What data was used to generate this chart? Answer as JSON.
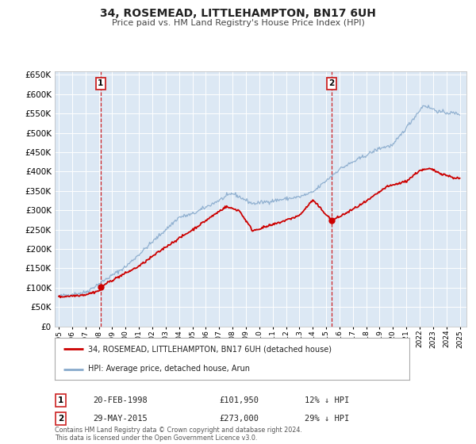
{
  "title": "34, ROSEMEAD, LITTLEHAMPTON, BN17 6UH",
  "subtitle": "Price paid vs. HM Land Registry's House Price Index (HPI)",
  "legend_line1": "34, ROSEMEAD, LITTLEHAMPTON, BN17 6UH (detached house)",
  "legend_line2": "HPI: Average price, detached house, Arun",
  "annotation1_label": "1",
  "annotation1_date": "20-FEB-1998",
  "annotation1_price": "£101,950",
  "annotation1_hpi": "12% ↓ HPI",
  "annotation2_label": "2",
  "annotation2_date": "29-MAY-2015",
  "annotation2_price": "£273,000",
  "annotation2_hpi": "29% ↓ HPI",
  "footer": "Contains HM Land Registry data © Crown copyright and database right 2024.\nThis data is licensed under the Open Government Licence v3.0.",
  "property_color": "#cc0000",
  "hpi_color": "#88aacc",
  "figure_bg": "#ffffff",
  "plot_bg_color": "#dce8f4",
  "grid_color": "#ffffff",
  "ylim": [
    0,
    660000
  ],
  "xlim_start": 1994.7,
  "xlim_end": 2025.5,
  "marker1_x": 1998.13,
  "marker1_y": 101950,
  "marker2_x": 2015.41,
  "marker2_y": 273000,
  "vline1_x": 1998.13,
  "vline2_x": 2015.41,
  "yticks": [
    0,
    50000,
    100000,
    150000,
    200000,
    250000,
    300000,
    350000,
    400000,
    450000,
    500000,
    550000,
    600000,
    650000
  ],
  "xticks": [
    1995,
    1996,
    1997,
    1998,
    1999,
    2000,
    2001,
    2002,
    2003,
    2004,
    2005,
    2006,
    2007,
    2008,
    2009,
    2010,
    2011,
    2012,
    2013,
    2014,
    2015,
    2016,
    2017,
    2018,
    2019,
    2020,
    2021,
    2022,
    2023,
    2024,
    2025
  ]
}
